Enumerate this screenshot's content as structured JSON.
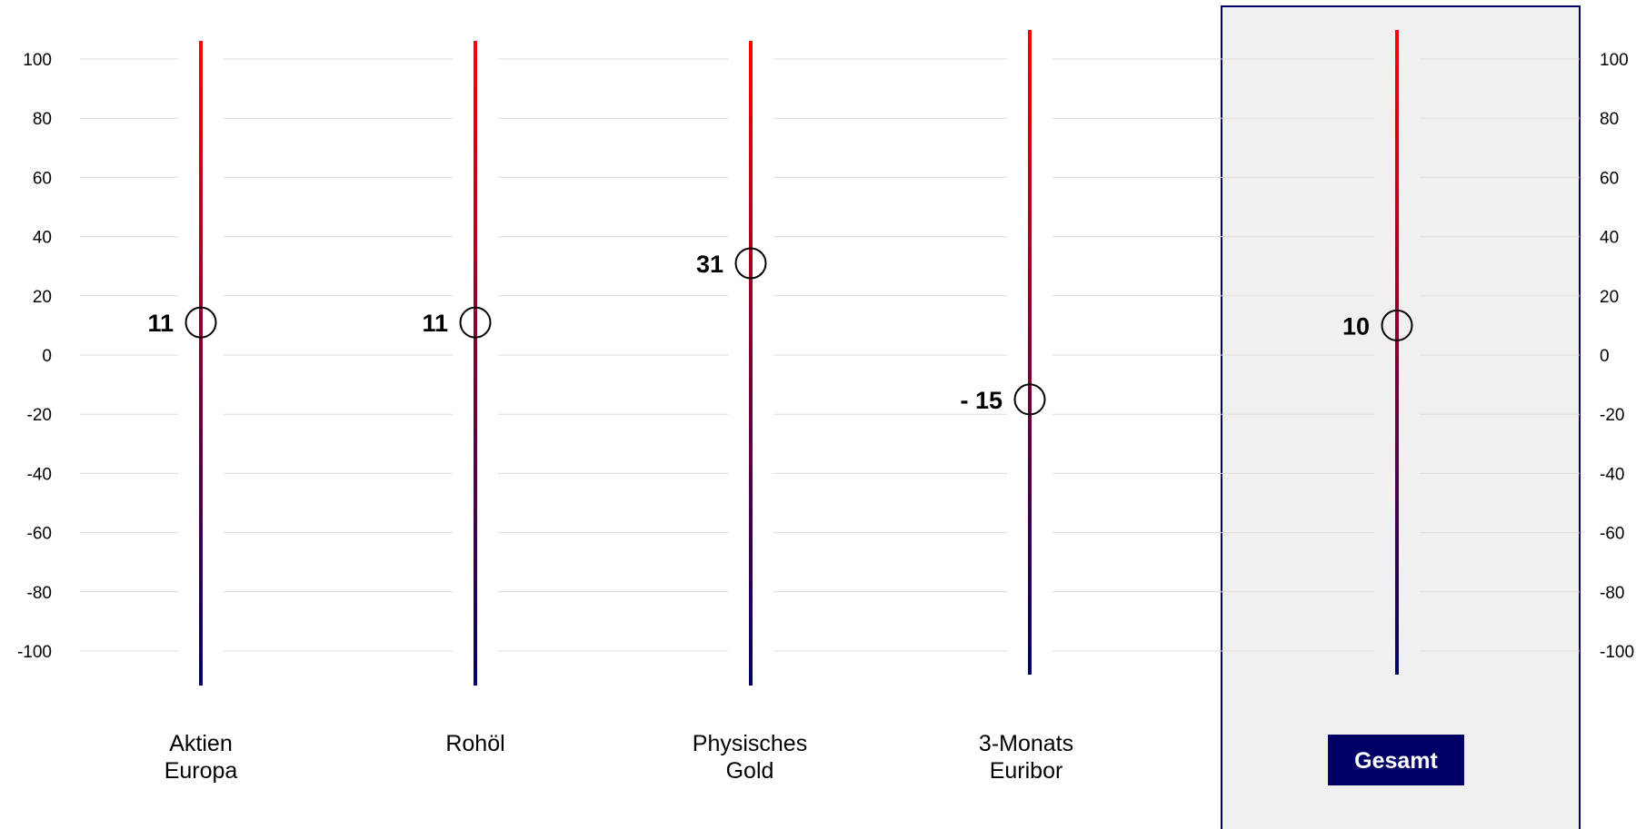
{
  "chart_data": {
    "type": "scatter",
    "categories": [
      {
        "label_lines": [
          "Aktien",
          "Europa"
        ],
        "value": 11
      },
      {
        "label_lines": [
          "Rohöl"
        ],
        "value": 11
      },
      {
        "label_lines": [
          "Physisches",
          "Gold"
        ],
        "value": 31
      },
      {
        "label_lines": [
          "3-Monats",
          "Euribor"
        ],
        "value": -15
      },
      {
        "label_lines": [
          "Gesamt"
        ],
        "value": 10,
        "highlight": true
      }
    ],
    "value_labels": [
      "11",
      "11",
      "31",
      "- 15",
      "10"
    ],
    "y_ticks": [
      100,
      80,
      60,
      40,
      20,
      0,
      -20,
      -40,
      -60,
      -80,
      -100
    ],
    "ylim": [
      -100,
      100
    ],
    "axes": "left and right",
    "grid": true,
    "line_gradient": {
      "top": "#ff0000",
      "bottom": "#000066"
    },
    "highlight_colors": {
      "panel_fill": "#f0f0f0",
      "panel_border": "#000066",
      "label_fill": "#000066",
      "label_text": "#ffffff"
    }
  }
}
